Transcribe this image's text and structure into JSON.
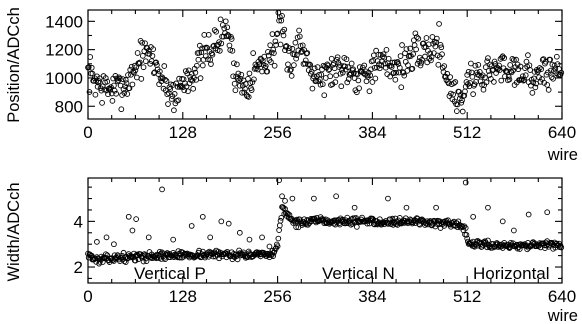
{
  "chart_data": [
    {
      "type": "scatter",
      "title": "",
      "xlabel": "wire",
      "ylabel": "Position/ADCch",
      "xlim": [
        0,
        640
      ],
      "ylim": [
        710,
        1480
      ],
      "xticks": [
        0,
        128,
        256,
        384,
        512,
        640
      ],
      "yticks": [
        800,
        1000,
        1200,
        1400
      ],
      "grid": false,
      "annotations": [],
      "anchors": [
        [
          0,
          1040
        ],
        [
          20,
          930
        ],
        [
          40,
          920
        ],
        [
          55,
          980
        ],
        [
          70,
          1140
        ],
        [
          85,
          1160
        ],
        [
          95,
          1050
        ],
        [
          105,
          940
        ],
        [
          118,
          880
        ],
        [
          130,
          980
        ],
        [
          145,
          1060
        ],
        [
          160,
          1180
        ],
        [
          175,
          1250
        ],
        [
          188,
          1360
        ],
        [
          198,
          1050
        ],
        [
          210,
          940
        ],
        [
          225,
          1060
        ],
        [
          240,
          1120
        ],
        [
          252,
          1220
        ],
        [
          258,
          1380
        ],
        [
          270,
          1100
        ],
        [
          285,
          1250
        ],
        [
          300,
          1090
        ],
        [
          315,
          1000
        ],
        [
          330,
          1060
        ],
        [
          350,
          1080
        ],
        [
          365,
          1020
        ],
        [
          380,
          1060
        ],
        [
          400,
          1100
        ],
        [
          420,
          1080
        ],
        [
          440,
          1160
        ],
        [
          460,
          1200
        ],
        [
          475,
          1240
        ],
        [
          485,
          980
        ],
        [
          495,
          880
        ],
        [
          505,
          850
        ],
        [
          512,
          980
        ],
        [
          530,
          1020
        ],
        [
          550,
          1060
        ],
        [
          570,
          1080
        ],
        [
          590,
          1040
        ],
        [
          610,
          1000
        ],
        [
          625,
          1060
        ],
        [
          640,
          1050
        ]
      ],
      "spread": 90,
      "n_points": 640,
      "seed": 7
    },
    {
      "type": "scatter",
      "title": "",
      "xlabel": "wire",
      "ylabel": "Width/ADCch",
      "xlim": [
        0,
        640
      ],
      "ylim": [
        1.3,
        5.9
      ],
      "xticks": [
        0,
        128,
        256,
        384,
        512,
        640
      ],
      "yticks": [
        2,
        4
      ],
      "grid": false,
      "annotations": [
        "Vertical P",
        "Vertical N",
        "Horizontal"
      ],
      "anchors": [
        [
          0,
          2.6
        ],
        [
          10,
          2.3
        ],
        [
          40,
          2.4
        ],
        [
          100,
          2.5
        ],
        [
          150,
          2.55
        ],
        [
          200,
          2.55
        ],
        [
          250,
          2.5
        ],
        [
          256,
          3.0
        ],
        [
          262,
          4.6
        ],
        [
          280,
          3.9
        ],
        [
          300,
          4.0
        ],
        [
          350,
          4.0
        ],
        [
          400,
          4.0
        ],
        [
          450,
          4.0
        ],
        [
          500,
          3.8
        ],
        [
          510,
          3.6
        ],
        [
          514,
          3.0
        ],
        [
          530,
          3.0
        ],
        [
          560,
          2.95
        ],
        [
          600,
          2.95
        ],
        [
          640,
          2.95
        ]
      ],
      "spread": 0.12,
      "n_points": 640,
      "seed": 13,
      "outliers": [
        [
          12,
          3.1
        ],
        [
          25,
          3.3
        ],
        [
          35,
          3.0
        ],
        [
          55,
          4.2
        ],
        [
          60,
          3.6
        ],
        [
          65,
          4.1
        ],
        [
          82,
          3.3
        ],
        [
          100,
          5.4
        ],
        [
          115,
          3.2
        ],
        [
          140,
          3.8
        ],
        [
          155,
          4.2
        ],
        [
          165,
          3.3
        ],
        [
          180,
          4.0
        ],
        [
          190,
          3.9
        ],
        [
          205,
          3.5
        ],
        [
          218,
          3.2
        ],
        [
          235,
          3.3
        ],
        [
          245,
          2.9
        ],
        [
          258,
          5.8
        ],
        [
          262,
          5.1
        ],
        [
          266,
          4.9
        ],
        [
          276,
          5.0
        ],
        [
          305,
          5.0
        ],
        [
          335,
          5.1
        ],
        [
          360,
          4.6
        ],
        [
          405,
          5.0
        ],
        [
          430,
          4.6
        ],
        [
          470,
          4.6
        ],
        [
          510,
          5.7
        ],
        [
          520,
          4.2
        ],
        [
          540,
          4.6
        ],
        [
          560,
          4.0
        ],
        [
          575,
          3.6
        ],
        [
          595,
          4.3
        ],
        [
          620,
          4.4
        ]
      ]
    }
  ]
}
